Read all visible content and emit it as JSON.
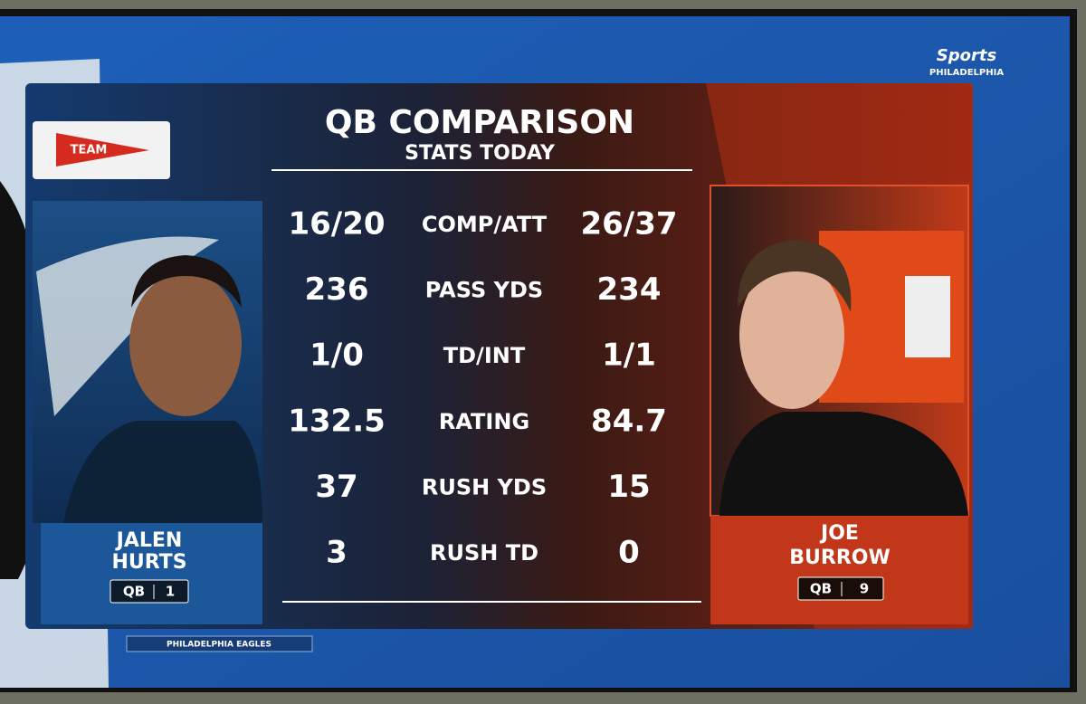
{
  "network": {
    "brand": "Sports",
    "region": "PHILADELPHIA"
  },
  "badge": "TEAM",
  "header": {
    "title": "QB COMPARISON",
    "subtitle": "STATS TODAY"
  },
  "players": [
    {
      "first": "JALEN",
      "last": "HURTS",
      "position": "QB",
      "number": "1"
    },
    {
      "first": "JOE",
      "last": "BURROW",
      "position": "QB",
      "number": "9"
    }
  ],
  "table": {
    "rows": [
      [
        "16/20",
        "COMP/ATT",
        "26/37"
      ],
      [
        "236",
        "PASS YDS",
        "234"
      ],
      [
        "1/0",
        "TD/INT",
        "1/1"
      ],
      [
        "132.5",
        "RATING",
        "84.7"
      ],
      [
        "37",
        "RUSH YDS",
        "15"
      ],
      [
        "3",
        "RUSH TD",
        "0"
      ]
    ]
  },
  "footer": "PHILADELPHIA EAGLES"
}
